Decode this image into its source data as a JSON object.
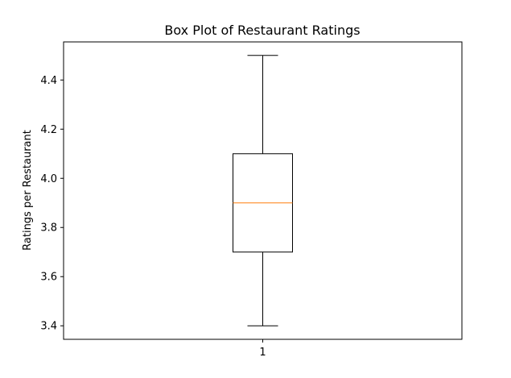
{
  "chart_data": {
    "type": "box",
    "title": "Box Plot of Restaurant Ratings",
    "xlabel": "",
    "ylabel": "Ratings per Restaurant",
    "categories": [
      "1"
    ],
    "ylim": [
      3.345,
      4.555
    ],
    "y_ticks": [
      3.4,
      3.6,
      3.8,
      4.0,
      4.2,
      4.4
    ],
    "y_tick_labels": [
      "3.4",
      "3.6",
      "3.8",
      "4.0",
      "4.2",
      "4.4"
    ],
    "boxes": [
      {
        "category": "1",
        "whisker_low": 3.4,
        "q1": 3.7,
        "median": 3.9,
        "q3": 4.1,
        "whisker_high": 4.5
      }
    ],
    "grid": false,
    "colors": {
      "box": "#000000",
      "median": "#ff7f0e",
      "whisker": "#000000"
    }
  }
}
